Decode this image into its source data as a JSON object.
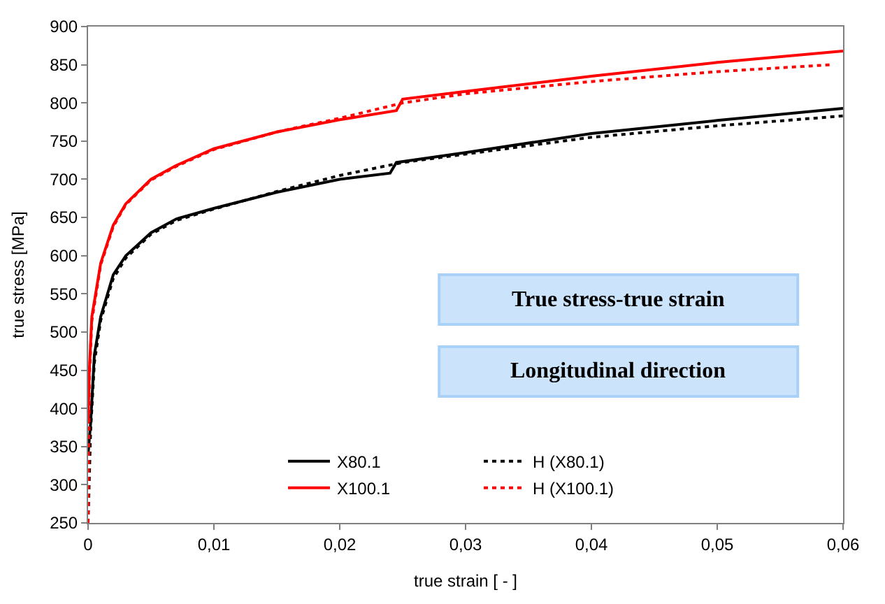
{
  "chart_data": {
    "type": "line",
    "xlabel": "true strain [ - ]",
    "ylabel": "true stress [MPa]",
    "xlim": [
      0,
      0.06
    ],
    "ylim": [
      250,
      900
    ],
    "xticks": [
      0,
      {
        "value": 0.01,
        "label": "0,01"
      },
      {
        "value": 0.02,
        "label": "0,02"
      },
      {
        "value": 0.03,
        "label": "0,03"
      },
      {
        "value": 0.04,
        "label": "0,04"
      },
      {
        "value": 0.05,
        "label": "0,05"
      },
      {
        "value": 0.06,
        "label": "0,06"
      }
    ],
    "yticks": [
      250,
      300,
      350,
      400,
      450,
      500,
      550,
      600,
      650,
      700,
      750,
      800,
      850,
      900
    ],
    "grid": false,
    "legend": "bottom right",
    "annotations": [
      "True stress-true strain",
      "Longitudinal direction"
    ],
    "series": [
      {
        "name": "X80.1",
        "color": "#000000",
        "line_style": "solid",
        "x": [
          0,
          0.0002,
          0.0005,
          0.001,
          0.002,
          0.003,
          0.005,
          0.007,
          0.01,
          0.015,
          0.02,
          0.024,
          0.0245,
          0.03,
          0.04,
          0.05,
          0.06
        ],
        "values": [
          340,
          380,
          470,
          520,
          575,
          600,
          630,
          648,
          662,
          683,
          700,
          708,
          722,
          735,
          760,
          777,
          793
        ]
      },
      {
        "name": "H (X80.1)",
        "color": "#000000",
        "line_style": "dotted",
        "x": [
          0,
          0.0002,
          0.0005,
          0.001,
          0.002,
          0.003,
          0.005,
          0.007,
          0.01,
          0.015,
          0.02,
          0.025,
          0.03,
          0.04,
          0.05,
          0.06
        ],
        "values": [
          250,
          370,
          460,
          515,
          570,
          597,
          628,
          646,
          661,
          684,
          705,
          722,
          733,
          755,
          770,
          783
        ]
      },
      {
        "name": "X100.1",
        "color": "#ff0000",
        "line_style": "solid",
        "x": [
          0,
          0.0001,
          0.0003,
          0.001,
          0.002,
          0.003,
          0.005,
          0.007,
          0.01,
          0.015,
          0.02,
          0.0245,
          0.025,
          0.03,
          0.04,
          0.05,
          0.06
        ],
        "values": [
          380,
          450,
          520,
          590,
          640,
          668,
          700,
          718,
          740,
          762,
          778,
          790,
          805,
          815,
          835,
          853,
          868
        ]
      },
      {
        "name": "H (X100.1)",
        "color": "#ff0000",
        "line_style": "dotted",
        "x": [
          0,
          0.0001,
          0.0003,
          0.001,
          0.002,
          0.003,
          0.005,
          0.007,
          0.01,
          0.015,
          0.02,
          0.025,
          0.03,
          0.04,
          0.05,
          0.059
        ],
        "values": [
          250,
          440,
          515,
          588,
          638,
          667,
          699,
          717,
          739,
          762,
          780,
          800,
          812,
          828,
          841,
          850
        ]
      }
    ]
  }
}
